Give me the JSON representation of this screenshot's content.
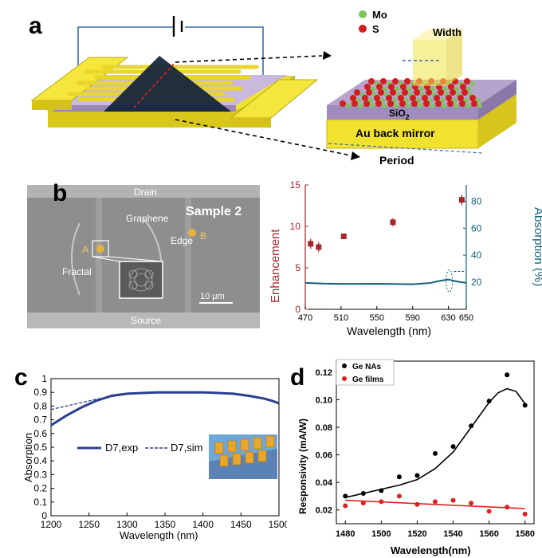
{
  "panel_a": {
    "letter": "a",
    "legend_mo": "Mo",
    "legend_s": "S",
    "label_width": "Width",
    "label_sio2": "SiO",
    "label_sio2_sub": "2",
    "label_mirror": "Au back mirror",
    "label_period": "Period",
    "colors": {
      "gold": "#f2e230",
      "purple": "#b6a4cc",
      "dark": "#10213a",
      "mo": "#7ec45a",
      "s": "#d21e1e"
    }
  },
  "panel_b": {
    "letter": "b",
    "sem": {
      "drain": "Drain",
      "source": "Source",
      "sample": "Sample 2",
      "graphene": "Graphene",
      "edge": "Edge",
      "point_a": "A",
      "point_b": "B",
      "fractal": "Fractal",
      "scale": "10 μm"
    },
    "chart_data": {
      "type": "scatter",
      "xlabel": "Wavelength (nm)",
      "ylabel_left": "Enhancement",
      "ylabel_right": "Absorption (%)",
      "x_ticks": [
        "470",
        "510",
        "550",
        "590",
        "630",
        "650"
      ],
      "y_left_ticks": [
        "0",
        "5",
        "10",
        "15"
      ],
      "y_right_ticks": [
        "20",
        "40",
        "60",
        "80"
      ],
      "xlim": [
        470,
        650
      ],
      "ylim_left": [
        0,
        15
      ],
      "ylim_right": [
        0,
        92
      ],
      "enhancement_points": [
        {
          "x": 476,
          "y": 7.9,
          "err": 0.6
        },
        {
          "x": 485,
          "y": 7.5,
          "err": 0.6
        },
        {
          "x": 513,
          "y": 8.8,
          "err": 0.2
        },
        {
          "x": 568,
          "y": 10.5,
          "err": 0.5
        },
        {
          "x": 645,
          "y": 13.2,
          "err": 0.6
        }
      ],
      "absorption_curve": {
        "x": [
          470,
          490,
          510,
          530,
          550,
          570,
          590,
          610,
          620,
          630,
          640,
          650
        ],
        "y": [
          19.5,
          19.0,
          18.8,
          18.8,
          18.9,
          18.7,
          18.5,
          19.5,
          21.0,
          22.0,
          20.5,
          19.5
        ]
      },
      "colors": {
        "enhancement": "#a8252b",
        "absorption": "#16617a"
      }
    }
  },
  "panel_c": {
    "letter": "c",
    "chart_data": {
      "type": "line",
      "xlabel": "Wavelength (nm)",
      "ylabel": "Absorption",
      "x_ticks": [
        "1200",
        "1250",
        "1300",
        "1350",
        "1400",
        "1450",
        "1500"
      ],
      "y_ticks": [
        "0",
        "0.1",
        "0.2",
        "0.3",
        "0.4",
        "0.5",
        "0.6",
        "0.7",
        "0.8",
        "0.9",
        "1"
      ],
      "xlim": [
        1200,
        1500
      ],
      "ylim": [
        0,
        1
      ],
      "series": [
        {
          "name": "D7,exp",
          "x": [
            1200,
            1220,
            1240,
            1260,
            1280,
            1300,
            1320,
            1340,
            1360,
            1380,
            1400,
            1420,
            1440,
            1460,
            1480,
            1490,
            1500
          ],
          "y": [
            0.66,
            0.73,
            0.79,
            0.84,
            0.875,
            0.89,
            0.895,
            0.9,
            0.9,
            0.9,
            0.9,
            0.895,
            0.89,
            0.875,
            0.855,
            0.84,
            0.82
          ],
          "color": "#2a3f8f"
        },
        {
          "name": "D7,sim",
          "x": [
            1200,
            1220,
            1240,
            1260,
            1280,
            1300
          ],
          "y": [
            0.775,
            0.8,
            0.825,
            0.85,
            0.87,
            0.885
          ],
          "color": "#2a3f8f"
        }
      ]
    }
  },
  "panel_d": {
    "letter": "d",
    "chart_data": {
      "type": "scatter",
      "xlabel": "Wavelength(nm)",
      "ylabel": "Responsivity (mA/W)",
      "x_ticks": [
        "1480",
        "1500",
        "1520",
        "1540",
        "1560",
        "1580"
      ],
      "y_ticks": [
        "0.02",
        "0.04",
        "0.06",
        "0.08",
        "0.10",
        "0.12"
      ],
      "xlim": [
        1475,
        1585
      ],
      "ylim": [
        0.01,
        0.128
      ],
      "series": [
        {
          "name": "Ge NAs",
          "color": "#000000",
          "x": [
            1480,
            1490,
            1500,
            1510,
            1520,
            1530,
            1540,
            1550,
            1560,
            1570,
            1580
          ],
          "y": [
            0.03,
            0.032,
            0.034,
            0.044,
            0.045,
            0.061,
            0.066,
            0.081,
            0.099,
            0.118,
            0.096
          ],
          "fit_x": [
            1480,
            1490,
            1500,
            1510,
            1520,
            1530,
            1540,
            1550,
            1560,
            1565,
            1570,
            1575,
            1580
          ],
          "fit_y": [
            0.029,
            0.032,
            0.035,
            0.038,
            0.042,
            0.05,
            0.062,
            0.08,
            0.098,
            0.105,
            0.108,
            0.106,
            0.097
          ]
        },
        {
          "name": "Ge films",
          "color": "#e02020",
          "x": [
            1480,
            1490,
            1500,
            1510,
            1520,
            1530,
            1540,
            1550,
            1560,
            1570,
            1580
          ],
          "y": [
            0.023,
            0.025,
            0.026,
            0.03,
            0.024,
            0.026,
            0.027,
            0.025,
            0.019,
            0.022,
            0.017
          ],
          "fit_x": [
            1480,
            1580
          ],
          "fit_y": [
            0.027,
            0.021
          ]
        }
      ]
    }
  }
}
